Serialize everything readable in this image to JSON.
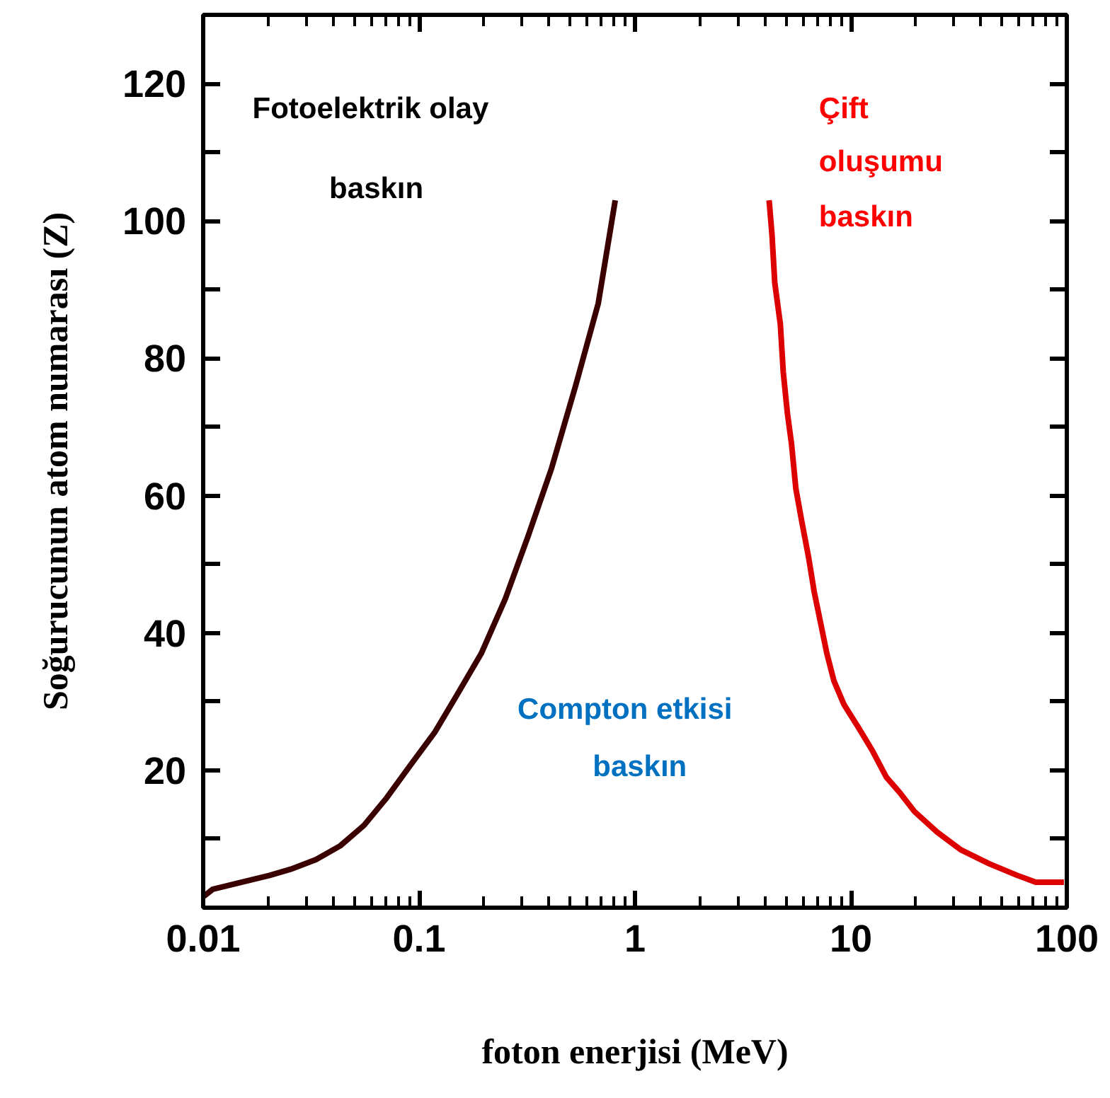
{
  "chart_data": {
    "type": "line",
    "xlabel": "foton enerjisi (MeV)",
    "ylabel": "Soğurucunun atom numarası (Z)",
    "log": "x",
    "xlim": [
      0.01,
      100
    ],
    "xticks": [
      0.01,
      0.1,
      1,
      10,
      100
    ],
    "ylim": [
      0,
      130
    ],
    "yticks": [
      {
        "value": 10,
        "label": null
      },
      20,
      {
        "value": 30,
        "label": null
      },
      40,
      {
        "value": 50,
        "label": null
      },
      60,
      {
        "value": 70,
        "label": null
      },
      80,
      {
        "value": 90,
        "label": null
      },
      100,
      {
        "value": 110,
        "label": null
      },
      120
    ],
    "grid": false,
    "marker": "none",
    "line_style": "solid",
    "annotations": [
      "Fotoelektrik olay",
      "baskın",
      "Compton etkisi",
      "baskın",
      "Çift",
      "oluşumu",
      "baskın"
    ],
    "series": [
      {
        "color": "#3a0000",
        "x": [
          0.01,
          0.0111,
          0.015,
          0.0203,
          0.0254,
          0.0333,
          0.0431,
          0.0556,
          0.0708,
          0.0914,
          0.118,
          0.15,
          0.194,
          0.251,
          0.319,
          0.411,
          0.531,
          0.676,
          0.81
        ],
        "values": [
          1.6,
          2.7,
          3.7,
          4.7,
          5.6,
          7,
          9,
          12,
          16,
          20.8,
          25.5,
          31,
          37,
          45,
          54,
          64,
          76,
          88,
          103
        ]
      },
      {
        "color": "#dd0000",
        "x": [
          4.18,
          4.31,
          4.44,
          4.71,
          4.86,
          5.08,
          5.31,
          5.56,
          5.9,
          6.37,
          6.76,
          7.18,
          7.74,
          8.35,
          9.28,
          10.8,
          12.5,
          14.6,
          16.9,
          19.7,
          25.1,
          32.4,
          43.7,
          59,
          71.8,
          97
        ],
        "values": [
          103,
          98,
          91,
          85,
          78,
          72,
          67.5,
          61,
          56.5,
          51,
          46,
          42,
          37,
          33,
          29.6,
          26.3,
          23,
          19,
          16.7,
          14,
          11,
          8.4,
          6.4,
          4.7,
          3.7,
          3.7
        ]
      }
    ]
  }
}
